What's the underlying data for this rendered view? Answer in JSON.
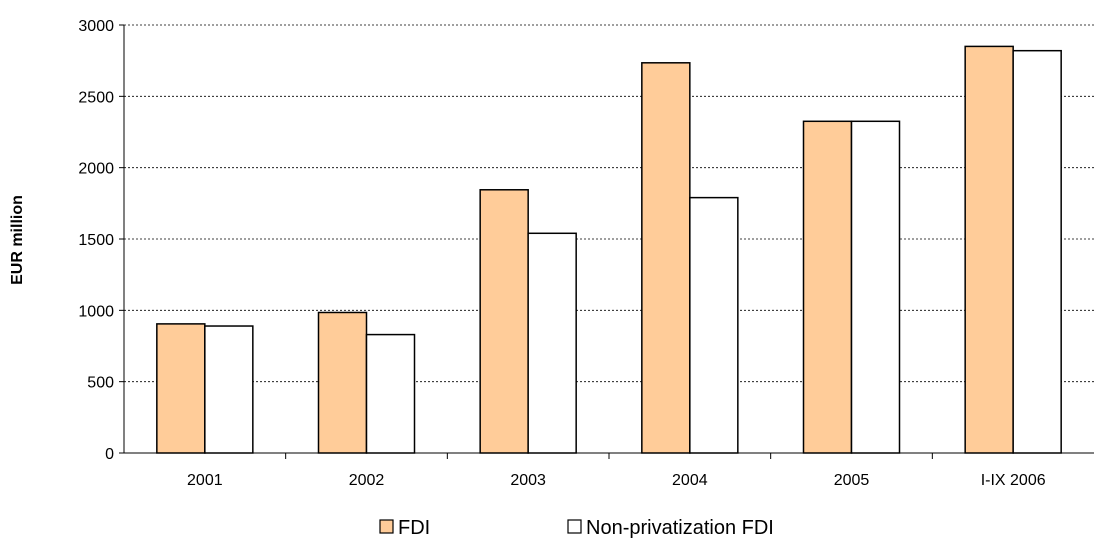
{
  "chart_data": {
    "type": "bar",
    "categories": [
      "2001",
      "2002",
      "2003",
      "2004",
      "2005",
      "I-IX 2006"
    ],
    "series": [
      {
        "name": "FDI",
        "values": [
          905,
          985,
          1845,
          2735,
          2325,
          2850
        ],
        "color": "#FFCC99"
      },
      {
        "name": "Non-privatization FDI",
        "values": [
          890,
          830,
          1540,
          1790,
          2325,
          2820
        ],
        "color": "#FFFFFF"
      }
    ],
    "title": "",
    "xlabel": "",
    "ylabel": "EUR million",
    "ylim": [
      0,
      3000
    ],
    "yticks": [
      0,
      500,
      1000,
      1500,
      2000,
      2500,
      3000
    ],
    "grid": "horizontal dashed",
    "legend": "bottom-center"
  }
}
